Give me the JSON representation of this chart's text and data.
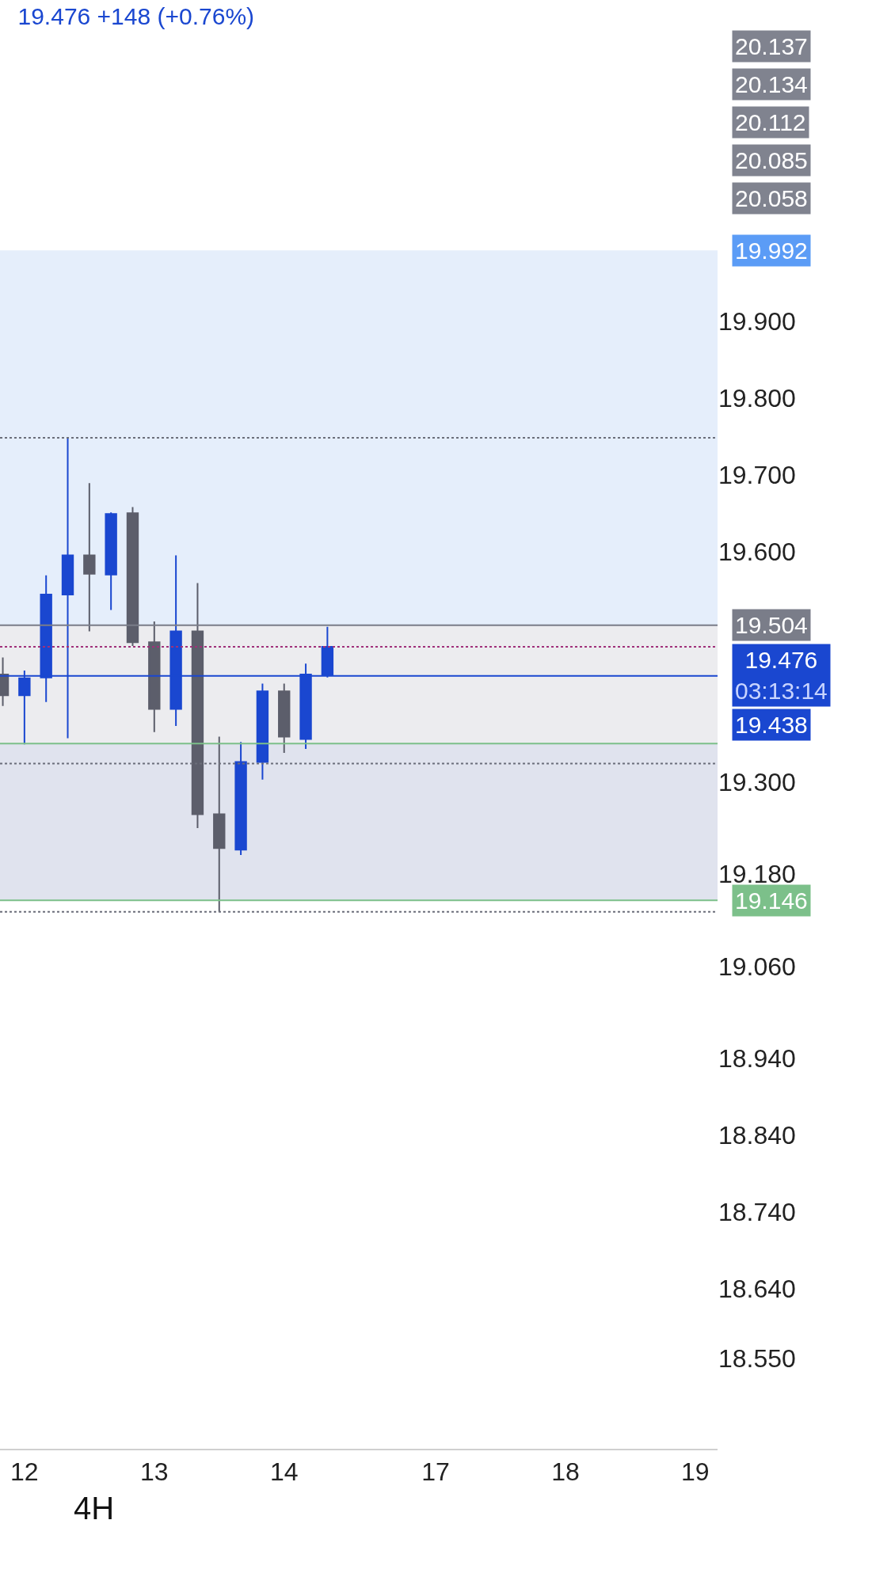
{
  "chart_data": {
    "type": "candlestick",
    "title": "19.476 +148 (+0.76%)",
    "categories": [
      null,
      "12",
      null,
      null,
      null,
      null,
      null,
      "13",
      null,
      null,
      null,
      null,
      null,
      "14",
      null,
      null,
      null,
      null,
      null,
      null,
      "17",
      null,
      null,
      null,
      null,
      null,
      "18",
      null,
      null,
      null,
      null,
      null,
      "19"
    ],
    "ohlc": [
      [
        19.44,
        19.462,
        19.399,
        19.413
      ],
      [
        19.413,
        19.445,
        19.349,
        19.435
      ],
      [
        19.436,
        19.569,
        19.404,
        19.544
      ],
      [
        19.544,
        19.748,
        19.357,
        19.595
      ],
      [
        19.595,
        19.689,
        19.496,
        19.571
      ],
      [
        19.57,
        19.651,
        19.524,
        19.649
      ],
      [
        19.65,
        19.658,
        19.477,
        19.482
      ],
      [
        19.482,
        19.509,
        19.365,
        19.395
      ],
      [
        19.395,
        19.595,
        19.373,
        19.496
      ],
      [
        19.496,
        19.559,
        19.24,
        19.258
      ],
      [
        19.258,
        19.359,
        19.131,
        19.214
      ],
      [
        19.212,
        19.352,
        19.205,
        19.326
      ],
      [
        19.326,
        19.428,
        19.303,
        19.418
      ],
      [
        19.418,
        19.428,
        19.338,
        19.359
      ],
      [
        19.356,
        19.454,
        19.343,
        19.44
      ],
      [
        19.44,
        19.502,
        19.436,
        19.476
      ],
      null,
      null,
      null,
      null,
      null,
      null,
      null,
      null,
      null,
      null,
      null,
      null,
      null,
      null,
      null,
      null,
      null
    ],
    "colors": [
      "#5c5e6b",
      "#1a47d0",
      "#1a47d0",
      "#1a47d0",
      "#5c5e6b",
      "#1a47d0",
      "#5c5e6b",
      "#5c5e6b",
      "#1a47d0",
      "#5c5e6b",
      "#5c5e6b",
      "#1a47d0",
      "#1a47d0",
      "#5c5e6b",
      "#1a47d0",
      "#1a47d0",
      null,
      null,
      null,
      null,
      null,
      null,
      null,
      null,
      null,
      null,
      null,
      null,
      null,
      null,
      null,
      null,
      null
    ],
    "ylim": [
      18.432,
      20.318
    ],
    "yticks": [
      {
        "value": 19.9,
        "label": "19.900"
      },
      {
        "value": 19.8,
        "label": "19.800"
      },
      {
        "value": 19.7,
        "label": "19.700"
      },
      {
        "value": 19.6,
        "label": "19.600"
      },
      {
        "value": 19.3,
        "label": "19.300"
      },
      {
        "value": 19.18,
        "label": "19.180"
      },
      {
        "value": 19.06,
        "label": "19.060"
      },
      {
        "value": 18.94,
        "label": "18.940"
      },
      {
        "value": 18.84,
        "label": "18.840"
      },
      {
        "value": 18.74,
        "label": "18.740"
      },
      {
        "value": 18.64,
        "label": "18.640"
      },
      {
        "value": 18.55,
        "label": "18.550"
      }
    ],
    "bands": [
      {
        "axis": "y",
        "from": 19.146,
        "to": 19.35,
        "color": "#c0d0fb"
      },
      {
        "axis": "y",
        "from": 19.504,
        "to": 19.992,
        "color": "#dce8fa",
        "label": "19.992"
      },
      {
        "axis": "y",
        "from": 19.146,
        "to": 19.504,
        "color": "#e6e6ea"
      }
    ],
    "ref_lines": [
      {
        "axis": "y",
        "value": 19.748,
        "color": "#6b6e7a",
        "line_style": "dotted"
      },
      {
        "axis": "y",
        "value": 19.324,
        "color": "#6b6e7a",
        "line_style": "dotted"
      },
      {
        "axis": "y",
        "value": 19.131,
        "color": "#6b6e7a",
        "line_style": "dotted"
      },
      {
        "axis": "y",
        "value": 19.35,
        "color": "#7cc08a",
        "line_style": "solid"
      },
      {
        "axis": "y",
        "value": 19.146,
        "color": "#7cc08a",
        "line_style": "solid",
        "label": "19.146"
      },
      {
        "axis": "y",
        "value": 19.504,
        "color": "#7a7d89",
        "line_style": "solid",
        "label": "19.504"
      },
      {
        "axis": "y",
        "value": 19.476,
        "color": "#a0307a",
        "line_style": "dotted",
        "label": "19.476"
      },
      {
        "axis": "y",
        "value": 19.438,
        "color": "#1a47d0",
        "line_style": "solid",
        "label": "19.438"
      }
    ],
    "annotations": [
      "20.137",
      "20.134",
      "20.112",
      "20.085",
      "20.058",
      "03:13:14",
      "4H"
    ],
    "grid": false
  }
}
